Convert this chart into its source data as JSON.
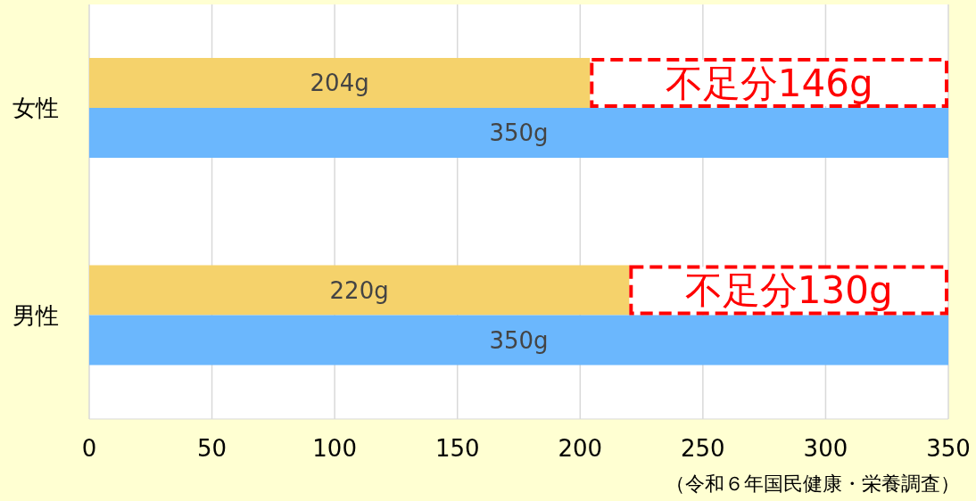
{
  "chart_data": {
    "type": "bar",
    "orientation": "horizontal",
    "categories": [
      "女性",
      "男性"
    ],
    "series": [
      {
        "color": "#f5d26b",
        "values": [
          204,
          220
        ],
        "value_labels": [
          "204g",
          "220g"
        ]
      },
      {
        "color": "#6bb7fd",
        "values": [
          350,
          350
        ],
        "value_labels": [
          "350g",
          "350g"
        ]
      }
    ],
    "xlim": [
      0,
      350
    ],
    "xticks": [
      0,
      50,
      100,
      150,
      200,
      250,
      300,
      350
    ],
    "grid": "x",
    "legend": false,
    "annotations": [
      {
        "text": "不足分146g",
        "x": 277,
        "y": "女性"
      },
      {
        "text": "不足分130g",
        "x": 285,
        "y": "男性"
      },
      "（令和６年国民健康・栄養調査）"
    ]
  }
}
